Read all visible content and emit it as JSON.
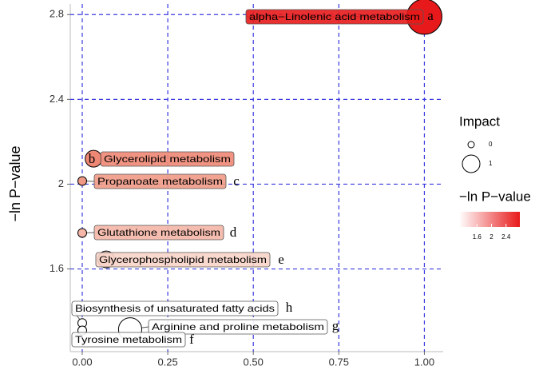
{
  "chart_data": {
    "type": "scatter",
    "y_label": "−ln P−value",
    "xlim": [
      -0.035,
      1.055
    ],
    "xticks": [
      {
        "value": 0,
        "label": "0.00"
      },
      0.25,
      {
        "value": 0.5,
        "label": "0.50"
      },
      0.75,
      {
        "value": 1,
        "label": "1.00"
      }
    ],
    "ylim": [
      1.21,
      2.85
    ],
    "yticks": [
      1.6,
      2.0,
      2.4,
      2.8
    ],
    "grid": true,
    "points": [
      {
        "name": "alpha−Linolenic acid metabolism",
        "letter": "a",
        "x": 1.0,
        "y": 2.79,
        "impact": 1.0,
        "color": "#e8191a"
      },
      {
        "name": "Glycerolipid metabolism",
        "letter": "b",
        "x": 0.033,
        "y": 2.12,
        "impact": 0.3,
        "color": "#ee8774"
      },
      {
        "name": "Propanoate metabolism",
        "letter": "c",
        "x": 0.0,
        "y": 2.015,
        "impact": 0.0,
        "color": "#f09a86"
      },
      {
        "name": "Glutathione metabolism",
        "letter": "d",
        "x": 0.0,
        "y": 1.77,
        "impact": 0.0,
        "color": "#f4b6a6"
      },
      {
        "name": "Glycerophospholipid metabolism",
        "letter": "e",
        "x": 0.07,
        "y": 1.645,
        "impact": 0.3,
        "color": "#f8d4c9"
      },
      {
        "name": "Biosynthesis of unsaturated fatty acids",
        "letter": "h",
        "x": 0.0,
        "y": 1.345,
        "impact": 0.0,
        "color": "#ffffff"
      },
      {
        "name": "Arginine and proline metabolism",
        "letter": "g",
        "x": 0.14,
        "y": 1.315,
        "impact": 0.55,
        "color": "#ffffff"
      },
      {
        "name": "Tyrosine metabolism",
        "letter": "f",
        "x": 0.0,
        "y": 1.31,
        "impact": 0.0,
        "color": "#ffffff"
      }
    ],
    "size_legend": {
      "title": "Impact",
      "values": [
        0,
        1
      ]
    },
    "color_legend": {
      "title": "−ln P−value",
      "colors": [
        "#ffffff",
        "#e8191a"
      ],
      "lim": [
        1.11,
        2.78
      ],
      "ticks": [
        1.6,
        2.0,
        2.4
      ]
    }
  }
}
